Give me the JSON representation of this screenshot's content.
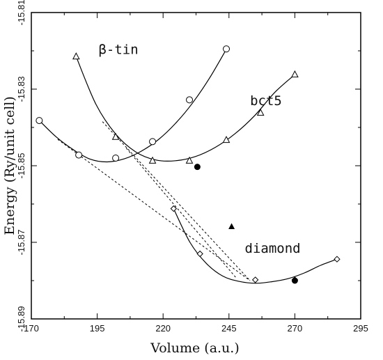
{
  "chart_data": {
    "type": "line",
    "xlabel": "Volume (a.u.)",
    "ylabel": "Energy (Ry/unit cell)",
    "xlim": [
      170,
      295
    ],
    "ylim": [
      -15.89,
      -15.81
    ],
    "xticks": [
      170,
      195,
      220,
      245,
      270,
      295
    ],
    "yticks": [
      -15.81,
      -15.83,
      -15.85,
      -15.87,
      -15.89
    ],
    "xtick_labels": [
      "170",
      "195",
      "220",
      "245",
      "270",
      "295"
    ],
    "ytick_labels": [
      "-15.81",
      "-15.83",
      "-15.85",
      "-15.87",
      "-15.89"
    ],
    "grid": false,
    "series": [
      {
        "name": "β-tin",
        "marker": "circle",
        "x": [
          173,
          188,
          202,
          216,
          230,
          244
        ],
        "y": [
          -15.8382,
          -15.8472,
          -15.848,
          -15.8437,
          -15.8328,
          -15.8195
        ],
        "curve_y": [
          -15.8382,
          -15.8425,
          -15.8458,
          -15.8483,
          -15.849,
          -15.8482,
          -15.8462,
          -15.8432,
          -15.839,
          -15.8337,
          -15.8272,
          -15.8196
        ]
      },
      {
        "name": "bct5",
        "marker": "triangle",
        "x": [
          187,
          202,
          216,
          230,
          244,
          257,
          270
        ],
        "y": [
          -15.8215,
          -15.8425,
          -15.8487,
          -15.8487,
          -15.8433,
          -15.8362,
          -15.8262
        ],
        "curve_y": [
          -15.8215,
          -15.834,
          -15.8418,
          -15.8464,
          -15.8485,
          -15.8487,
          -15.8476,
          -15.8452,
          -15.8416,
          -15.8368,
          -15.8308,
          -15.8262
        ]
      },
      {
        "name": "diamond",
        "marker": "diamond",
        "x": [
          224,
          234,
          255,
          270,
          286
        ],
        "y": [
          -15.8612,
          -15.873,
          -15.8798,
          -15.8798,
          -15.8744
        ],
        "curve_y": [
          -15.8612,
          -15.87,
          -15.8755,
          -15.8788,
          -15.8802,
          -15.8807,
          -15.8803,
          -15.8795,
          -15.878,
          -15.876,
          -15.8744
        ]
      }
    ],
    "tangent_lines": [
      {
        "x": [
          180,
          253
        ],
        "y": [
          -15.8431,
          -15.88
        ]
      },
      {
        "x": [
          197,
          253
        ],
        "y": [
          -15.8385,
          -15.88
        ]
      },
      {
        "x": [
          206,
          248
        ],
        "y": [
          -15.8454,
          -15.8795
        ]
      }
    ],
    "extra_points": [
      {
        "marker": "filled-circle",
        "x": 233,
        "y": -15.8503
      },
      {
        "marker": "filled-triangle",
        "x": 246,
        "y": -15.8659
      },
      {
        "marker": "filled-circle",
        "x": 270,
        "y": -15.88
      }
    ],
    "labels": [
      {
        "text": "β-tin",
        "x": 195.5,
        "y": -15.8208
      },
      {
        "text": "bct5",
        "x": 253,
        "y": -15.8342
      },
      {
        "text": "diamond",
        "x": 251,
        "y": -15.8727
      }
    ]
  }
}
